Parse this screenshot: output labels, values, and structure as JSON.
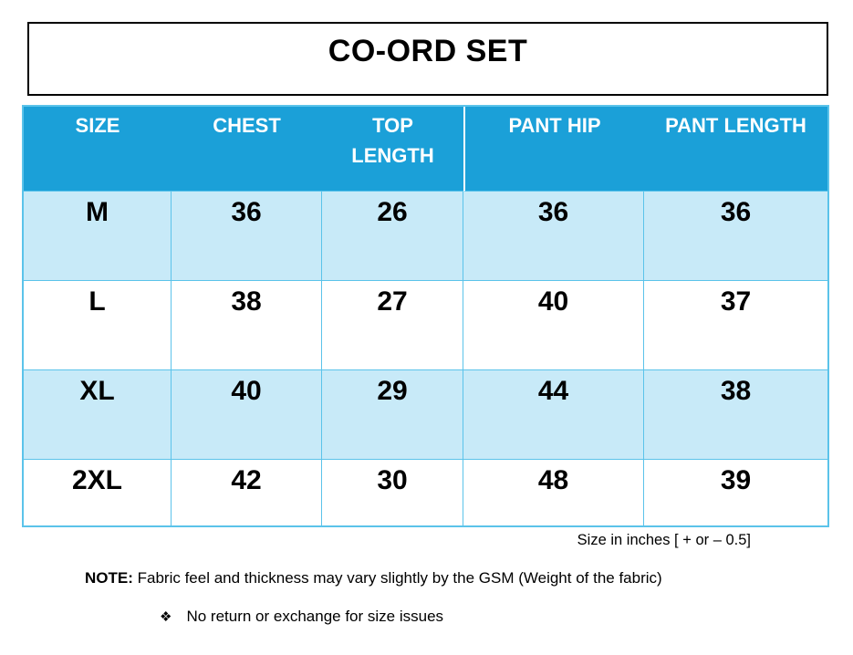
{
  "title": "CO-ORD SET",
  "table": {
    "columns": [
      "SIZE",
      "CHEST",
      "TOP\nLENGTH",
      "PANT HIP",
      "PANT LENGTH"
    ],
    "rows": [
      {
        "cells": [
          "M",
          "36",
          "26",
          "36",
          "36"
        ]
      },
      {
        "cells": [
          "L",
          "38",
          "27",
          "40",
          "37"
        ]
      },
      {
        "cells": [
          "XL",
          "40",
          "29",
          "44",
          "38"
        ]
      },
      {
        "cells": [
          "2XL",
          "42",
          "30",
          "48",
          "39"
        ]
      }
    ]
  },
  "footnotes": {
    "size_unit_note": "Size in inches [ + or – 0.5]",
    "note_label": "NOTE:",
    "note_text": " Fabric feel and thickness may vary slightly by the GSM (Weight of the fabric)",
    "bullet_icon": "❖",
    "bullet_text": "No return or exchange for size issues"
  },
  "colors": {
    "header_bg": "#1BA0D8",
    "row_alt_bg": "#C8EAF8",
    "table_border": "#5BC3EA",
    "text_color": "#000000"
  }
}
